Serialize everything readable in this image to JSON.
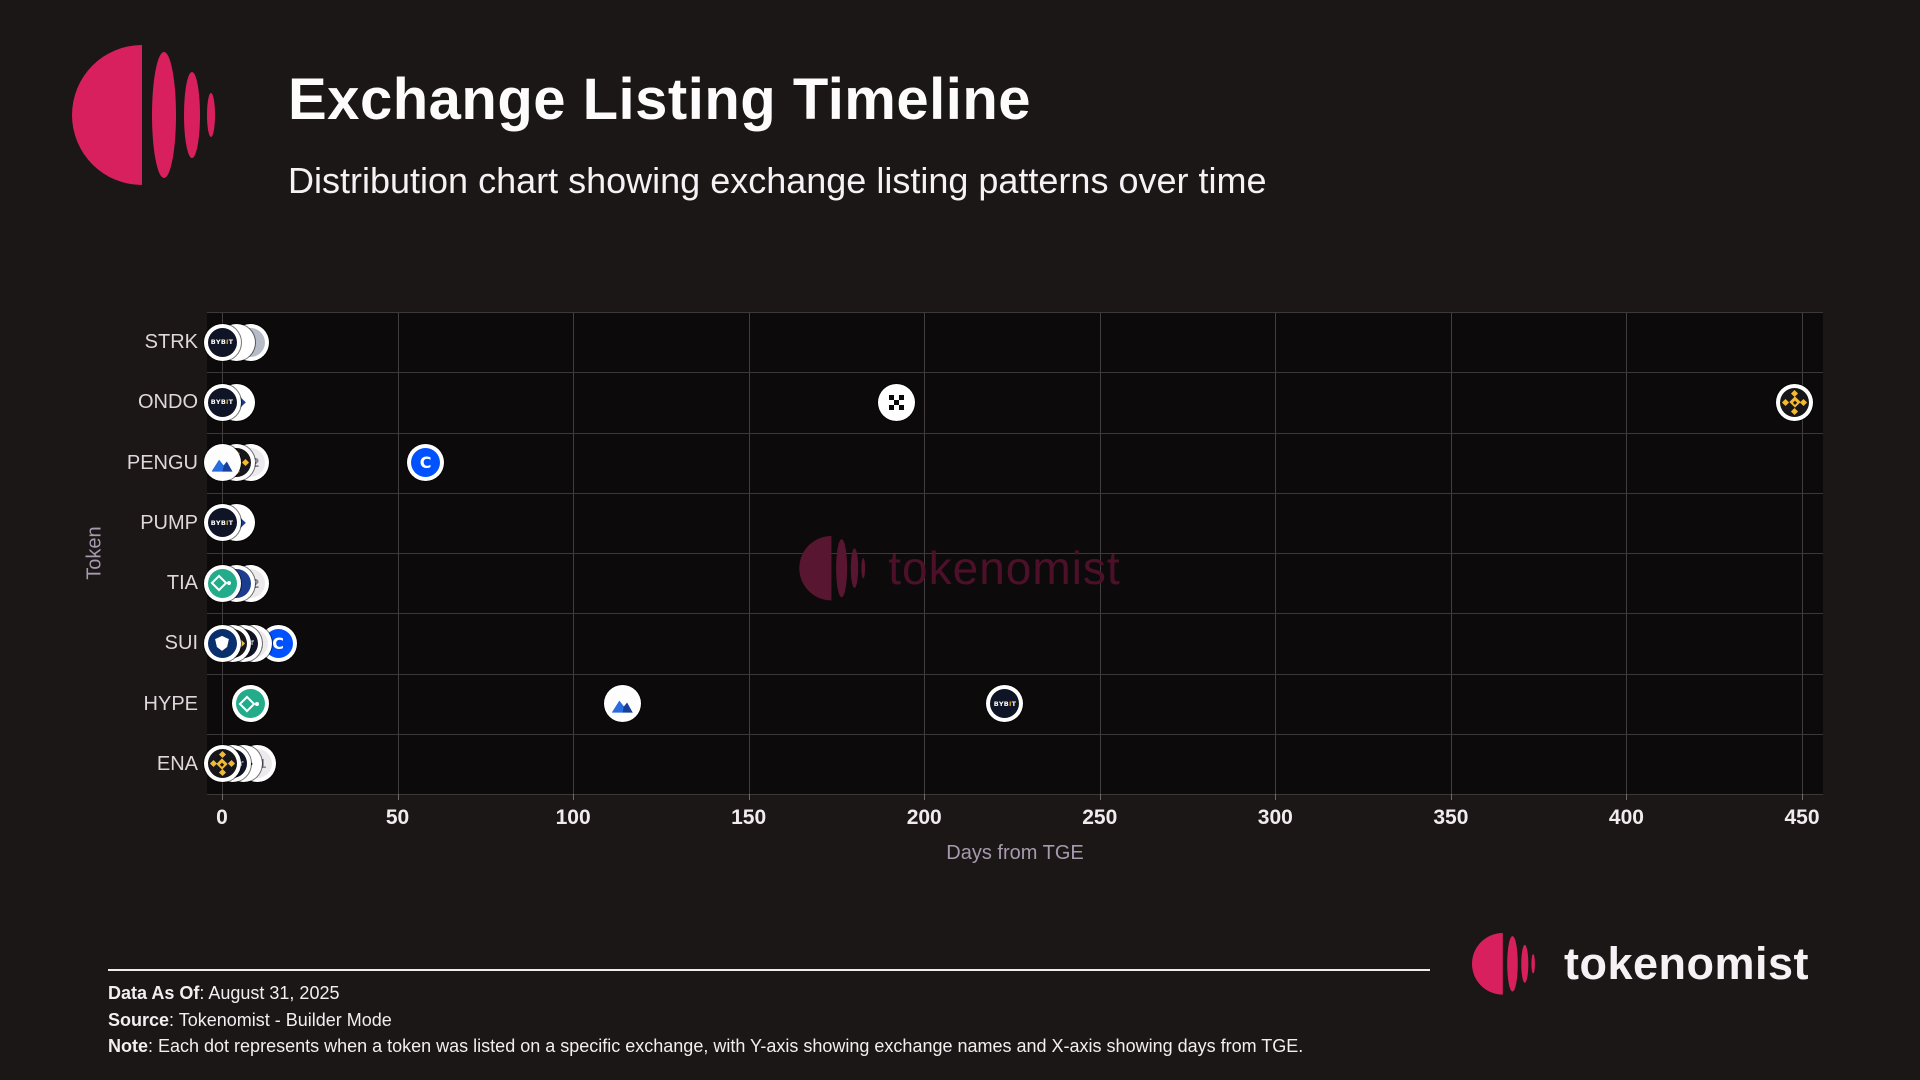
{
  "header": {
    "title": "Exchange Listing Timeline",
    "subtitle": "Distribution chart showing exchange listing patterns over time"
  },
  "colors": {
    "accent_pink": "#d9205e",
    "plot_background": "#0d0a0b",
    "page_background": "#1b1716",
    "coinbase_blue": "#0052ff",
    "binance_yellow": "#f3ba2f",
    "kucoin_green": "#22ac8a",
    "bybit_dark": "#0f1426"
  },
  "icons": {
    "bybit_text": "BYBIT",
    "coinbase_letter": "C",
    "blue_chevron_glyph": "»",
    "green_chevron_glyph": "❯"
  },
  "chart_data": {
    "type": "scatter",
    "title": "Exchange Listing Timeline",
    "xlabel": "Days from TGE",
    "ylabel": "Token",
    "xlim": [
      0,
      450
    ],
    "x_ticks": [
      0,
      50,
      100,
      150,
      200,
      250,
      300,
      350,
      400,
      450
    ],
    "grid": true,
    "tokens": [
      "STRK",
      "ONDO",
      "PENGU",
      "PUMP",
      "TIA",
      "SUI",
      "HYPE",
      "ENA"
    ],
    "rows": [
      {
        "token": "STRK",
        "listings": [
          {
            "day": 0,
            "exchange": "bybit"
          },
          {
            "day": 4,
            "exchange": "blue-chevron"
          },
          {
            "day": 8,
            "exchange": "gray"
          }
        ]
      },
      {
        "token": "ONDO",
        "listings": [
          {
            "day": 0,
            "exchange": "bybit"
          },
          {
            "day": 4,
            "exchange": "green-chevron"
          },
          {
            "day": 192,
            "exchange": "okx"
          },
          {
            "day": 448,
            "exchange": "binance"
          }
        ]
      },
      {
        "token": "PENGU",
        "listings": [
          {
            "day": 0,
            "exchange": "blue-mountain"
          },
          {
            "day": 4,
            "exchange": "binance"
          },
          {
            "day": 8,
            "exchange": "overflow",
            "label": "+2"
          },
          {
            "day": 58,
            "exchange": "coinbase"
          }
        ]
      },
      {
        "token": "PUMP",
        "listings": [
          {
            "day": 0,
            "exchange": "bybit"
          },
          {
            "day": 4,
            "exchange": "green-chevron"
          }
        ]
      },
      {
        "token": "TIA",
        "listings": [
          {
            "day": 0,
            "exchange": "kucoin"
          },
          {
            "day": 4,
            "exchange": "navy"
          },
          {
            "day": 8,
            "exchange": "overflow",
            "label": "+2"
          }
        ]
      },
      {
        "token": "SUI",
        "listings": [
          {
            "day": 0,
            "exchange": "crypto-com"
          },
          {
            "day": 3,
            "exchange": "binance"
          },
          {
            "day": 6,
            "exchange": "bybit"
          },
          {
            "day": 9,
            "exchange": "overflow",
            "label": "+2"
          },
          {
            "day": 16,
            "exchange": "coinbase"
          }
        ]
      },
      {
        "token": "HYPE",
        "listings": [
          {
            "day": 8,
            "exchange": "kucoin"
          },
          {
            "day": 114,
            "exchange": "blue-mountain"
          },
          {
            "day": 223,
            "exchange": "bybit"
          }
        ]
      },
      {
        "token": "ENA",
        "listings": [
          {
            "day": 0,
            "exchange": "binance"
          },
          {
            "day": 3,
            "exchange": "bybit"
          },
          {
            "day": 6,
            "exchange": "green-chevron"
          },
          {
            "day": 10,
            "exchange": "overflow",
            "label": "+1"
          }
        ]
      }
    ]
  },
  "watermark": {
    "text": "tokenomist"
  },
  "brand": {
    "name": "tokenomist"
  },
  "footer": {
    "lines": [
      {
        "label": "Data As Of",
        "text": ": August 31, 2025"
      },
      {
        "label": "Source",
        "text": ": Tokenomist - Builder Mode"
      },
      {
        "label": "Note",
        "text": ": Each dot represents when a token was listed on a specific exchange, with Y-axis showing exchange names and X-axis showing days from TGE."
      }
    ]
  }
}
